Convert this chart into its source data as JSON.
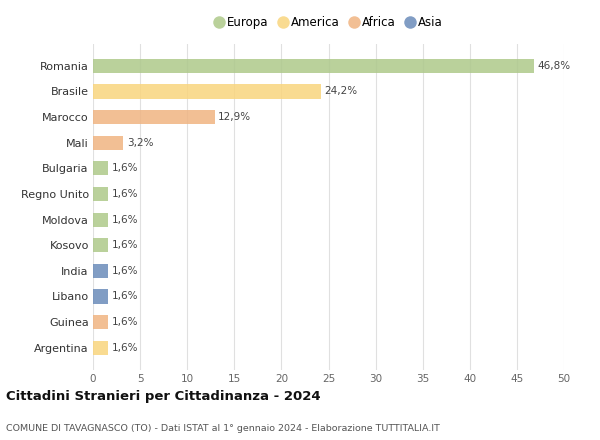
{
  "categories": [
    "Romania",
    "Brasile",
    "Marocco",
    "Mali",
    "Bulgaria",
    "Regno Unito",
    "Moldova",
    "Kosovo",
    "India",
    "Libano",
    "Guinea",
    "Argentina"
  ],
  "values": [
    46.8,
    24.2,
    12.9,
    3.2,
    1.6,
    1.6,
    1.6,
    1.6,
    1.6,
    1.6,
    1.6,
    1.6
  ],
  "labels": [
    "46,8%",
    "24,2%",
    "12,9%",
    "3,2%",
    "1,6%",
    "1,6%",
    "1,6%",
    "1,6%",
    "1,6%",
    "1,6%",
    "1,6%",
    "1,6%"
  ],
  "colors": [
    "#aec98a",
    "#f9d57e",
    "#f0b482",
    "#f0b482",
    "#aec98a",
    "#aec98a",
    "#aec98a",
    "#aec98a",
    "#6b8cba",
    "#6b8cba",
    "#f0b482",
    "#f9d57e"
  ],
  "legend_labels": [
    "Europa",
    "America",
    "Africa",
    "Asia"
  ],
  "legend_colors": [
    "#aec98a",
    "#f9d57e",
    "#f0b482",
    "#6b8cba"
  ],
  "title": "Cittadini Stranieri per Cittadinanza - 2024",
  "subtitle": "COMUNE DI TAVAGNASCO (TO) - Dati ISTAT al 1° gennaio 2024 - Elaborazione TUTTITALIA.IT",
  "xlim": [
    0,
    50
  ],
  "xticks": [
    0,
    5,
    10,
    15,
    20,
    25,
    30,
    35,
    40,
    45,
    50
  ],
  "background_color": "#ffffff",
  "grid_color": "#e0e0e0",
  "bar_height": 0.55,
  "label_fontsize": 7.5,
  "ytick_fontsize": 8,
  "xtick_fontsize": 7.5
}
